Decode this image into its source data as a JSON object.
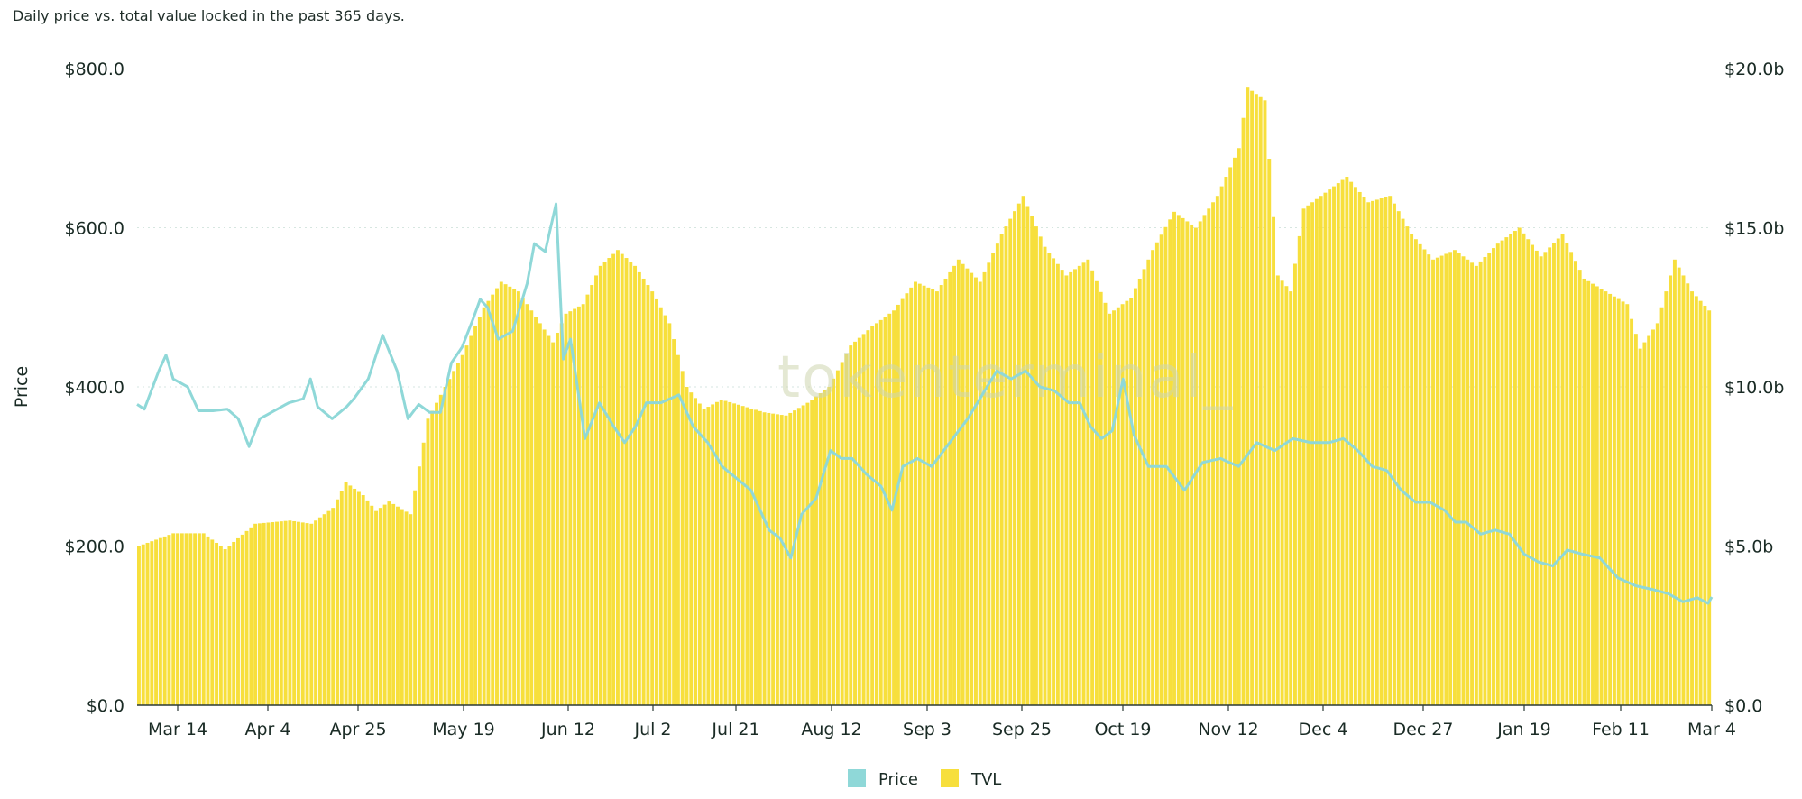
{
  "subtitle": "Daily price vs. total value locked in the past 365 days.",
  "watermark": "tokenterminal_",
  "chart_data": {
    "type": "bar+line",
    "title": "",
    "x_tick_labels": [
      "Mar 14",
      "Apr 4",
      "Apr 25",
      "May 19",
      "Jun 12",
      "Jul 2",
      "Jul 21",
      "Aug 12",
      "Sep 3",
      "Sep 25",
      "Oct 19",
      "Nov 12",
      "Dec 4",
      "Dec 27",
      "Jan 19",
      "Feb 11",
      "Mar 4"
    ],
    "left_axis": {
      "label": "Price",
      "ticks": [
        "$0.0",
        "$200.0",
        "$400.0",
        "$600.0",
        "$800.0"
      ],
      "range": [
        0,
        800
      ]
    },
    "right_axis": {
      "label": "",
      "ticks": [
        "$0.0",
        "$5.0b",
        "$10.0b",
        "$15.0b",
        "$20.0b"
      ],
      "range": [
        0,
        20
      ]
    },
    "colors": {
      "price": "#8fd8d8",
      "tvl": "#f7df3c",
      "tvl_edge": "#eccc1a"
    },
    "legend": {
      "placement": "bottom-center",
      "items": [
        "Price",
        "TVL"
      ]
    },
    "series": [
      {
        "name": "TVL",
        "unit": "$b",
        "axis": "right",
        "render": "bar",
        "anchors": [
          [
            0,
            5.0
          ],
          [
            8,
            5.4
          ],
          [
            15,
            5.4
          ],
          [
            20,
            4.9
          ],
          [
            27,
            5.7
          ],
          [
            35,
            5.8
          ],
          [
            40,
            5.7
          ],
          [
            45,
            6.2
          ],
          [
            48,
            7.0
          ],
          [
            52,
            6.6
          ],
          [
            55,
            6.1
          ],
          [
            58,
            6.4
          ],
          [
            63,
            6.0
          ],
          [
            67,
            9.0
          ],
          [
            71,
            10.0
          ],
          [
            75,
            11.0
          ],
          [
            80,
            12.5
          ],
          [
            84,
            13.3
          ],
          [
            88,
            13.0
          ],
          [
            92,
            12.2
          ],
          [
            96,
            11.4
          ],
          [
            99,
            12.3
          ],
          [
            103,
            12.6
          ],
          [
            107,
            13.8
          ],
          [
            111,
            14.3
          ],
          [
            115,
            13.8
          ],
          [
            119,
            13.0
          ],
          [
            123,
            12.0
          ],
          [
            127,
            10.0
          ],
          [
            131,
            9.3
          ],
          [
            135,
            9.6
          ],
          [
            140,
            9.4
          ],
          [
            145,
            9.2
          ],
          [
            150,
            9.1
          ],
          [
            155,
            9.5
          ],
          [
            160,
            10.0
          ],
          [
            165,
            11.3
          ],
          [
            170,
            11.9
          ],
          [
            175,
            12.4
          ],
          [
            180,
            13.3
          ],
          [
            185,
            13.0
          ],
          [
            190,
            14.0
          ],
          [
            195,
            13.3
          ],
          [
            200,
            14.8
          ],
          [
            205,
            16.0
          ],
          [
            210,
            14.4
          ],
          [
            215,
            13.5
          ],
          [
            220,
            14.0
          ],
          [
            225,
            12.3
          ],
          [
            230,
            12.8
          ],
          [
            235,
            14.3
          ],
          [
            240,
            15.5
          ],
          [
            245,
            15.0
          ],
          [
            250,
            16.0
          ],
          [
            255,
            17.5
          ],
          [
            257,
            19.4
          ],
          [
            261,
            19.0
          ],
          [
            264,
            13.5
          ],
          [
            267,
            13.0
          ],
          [
            270,
            15.6
          ],
          [
            275,
            16.1
          ],
          [
            280,
            16.6
          ],
          [
            285,
            15.8
          ],
          [
            290,
            16.0
          ],
          [
            295,
            14.8
          ],
          [
            300,
            14.0
          ],
          [
            305,
            14.3
          ],
          [
            310,
            13.8
          ],
          [
            315,
            14.5
          ],
          [
            320,
            15.0
          ],
          [
            325,
            14.1
          ],
          [
            330,
            14.8
          ],
          [
            335,
            13.4
          ],
          [
            340,
            13.0
          ],
          [
            345,
            12.6
          ],
          [
            348,
            11.2
          ],
          [
            352,
            12.0
          ],
          [
            356,
            14.0
          ],
          [
            360,
            13.0
          ],
          [
            364,
            12.4
          ]
        ]
      },
      {
        "name": "Price",
        "unit": "$",
        "axis": "left",
        "render": "line",
        "anchors": [
          [
            0,
            378
          ],
          [
            2,
            372
          ],
          [
            6,
            420
          ],
          [
            8,
            440
          ],
          [
            10,
            410
          ],
          [
            14,
            400
          ],
          [
            17,
            370
          ],
          [
            21,
            370
          ],
          [
            25,
            372
          ],
          [
            28,
            360
          ],
          [
            31,
            325
          ],
          [
            34,
            360
          ],
          [
            38,
            370
          ],
          [
            42,
            380
          ],
          [
            46,
            385
          ],
          [
            48,
            410
          ],
          [
            50,
            375
          ],
          [
            54,
            360
          ],
          [
            58,
            375
          ],
          [
            60,
            385
          ],
          [
            64,
            410
          ],
          [
            68,
            465
          ],
          [
            72,
            420
          ],
          [
            75,
            360
          ],
          [
            78,
            378
          ],
          [
            81,
            368
          ],
          [
            84,
            368
          ],
          [
            87,
            430
          ],
          [
            90,
            450
          ],
          [
            93,
            485
          ],
          [
            95,
            510
          ],
          [
            97,
            500
          ],
          [
            100,
            460
          ],
          [
            104,
            470
          ],
          [
            108,
            530
          ],
          [
            110,
            580
          ],
          [
            113,
            570
          ],
          [
            116,
            630
          ],
          [
            118,
            435
          ],
          [
            120,
            460
          ],
          [
            124,
            335
          ],
          [
            128,
            380
          ],
          [
            132,
            350
          ],
          [
            135,
            330
          ],
          [
            138,
            350
          ],
          [
            141,
            380
          ],
          [
            145,
            380
          ],
          [
            150,
            390
          ],
          [
            154,
            350
          ],
          [
            158,
            330
          ],
          [
            162,
            300
          ],
          [
            166,
            285
          ],
          [
            170,
            270
          ],
          [
            173,
            240
          ],
          [
            175,
            220
          ],
          [
            178,
            210
          ],
          [
            181,
            185
          ],
          [
            184,
            240
          ],
          [
            188,
            260
          ],
          [
            192,
            320
          ],
          [
            195,
            310
          ],
          [
            198,
            310
          ],
          [
            202,
            290
          ],
          [
            206,
            275
          ],
          [
            209,
            245
          ],
          [
            212,
            300
          ],
          [
            216,
            310
          ],
          [
            220,
            300
          ],
          [
            225,
            330
          ],
          [
            230,
            360
          ],
          [
            234,
            390
          ],
          [
            238,
            420
          ],
          [
            242,
            410
          ],
          [
            246,
            420
          ],
          [
            250,
            400
          ],
          [
            254,
            395
          ],
          [
            258,
            380
          ],
          [
            261,
            380
          ],
          [
            264,
            350
          ],
          [
            267,
            335
          ],
          [
            270,
            345
          ],
          [
            273,
            410
          ],
          [
            276,
            340
          ],
          [
            280,
            300
          ],
          [
            285,
            300
          ],
          [
            290,
            270
          ],
          [
            295,
            305
          ],
          [
            300,
            310
          ],
          [
            305,
            300
          ],
          [
            310,
            330
          ],
          [
            315,
            320
          ],
          [
            320,
            335
          ],
          [
            325,
            330
          ],
          [
            330,
            330
          ],
          [
            334,
            335
          ],
          [
            338,
            320
          ],
          [
            342,
            300
          ],
          [
            346,
            295
          ],
          [
            350,
            270
          ],
          [
            354,
            255
          ],
          [
            358,
            255
          ],
          [
            362,
            245
          ],
          [
            365,
            230
          ],
          [
            368,
            230
          ],
          [
            372,
            215
          ],
          [
            376,
            220
          ],
          [
            380,
            215
          ],
          [
            384,
            190
          ],
          [
            388,
            180
          ],
          [
            392,
            175
          ],
          [
            396,
            195
          ],
          [
            400,
            190
          ],
          [
            405,
            185
          ],
          [
            410,
            160
          ],
          [
            415,
            150
          ],
          [
            420,
            145
          ],
          [
            424,
            140
          ],
          [
            428,
            130
          ],
          [
            432,
            135
          ],
          [
            435,
            128
          ],
          [
            436,
            136
          ]
        ]
      }
    ],
    "x_count": 365
  }
}
